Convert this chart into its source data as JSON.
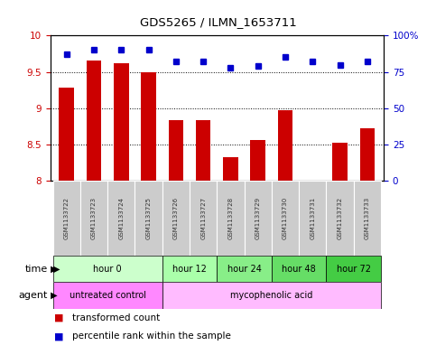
{
  "title": "GDS5265 / ILMN_1653711",
  "samples": [
    "GSM1133722",
    "GSM1133723",
    "GSM1133724",
    "GSM1133725",
    "GSM1133726",
    "GSM1133727",
    "GSM1133728",
    "GSM1133729",
    "GSM1133730",
    "GSM1133731",
    "GSM1133732",
    "GSM1133733"
  ],
  "bar_values": [
    9.28,
    9.65,
    9.62,
    9.5,
    8.84,
    8.84,
    8.33,
    8.57,
    8.97,
    8.01,
    8.53,
    8.72
  ],
  "dot_values": [
    87,
    90,
    90,
    90,
    82,
    82,
    78,
    79,
    85,
    82,
    80,
    82
  ],
  "bar_color": "#cc0000",
  "dot_color": "#0000cc",
  "ylim_left": [
    8,
    10
  ],
  "ylim_right": [
    0,
    100
  ],
  "yticks_left": [
    8,
    8.5,
    9,
    9.5,
    10
  ],
  "yticks_right": [
    0,
    25,
    50,
    75,
    100
  ],
  "ytick_labels_left": [
    "8",
    "8.5",
    "9",
    "9.5",
    "10"
  ],
  "ytick_labels_right": [
    "0",
    "25",
    "50",
    "75",
    "100%"
  ],
  "time_groups": [
    {
      "label": "hour 0",
      "start": 0,
      "end": 4,
      "color": "#ccffcc"
    },
    {
      "label": "hour 12",
      "start": 4,
      "end": 6,
      "color": "#aaffaa"
    },
    {
      "label": "hour 24",
      "start": 6,
      "end": 8,
      "color": "#88ee88"
    },
    {
      "label": "hour 48",
      "start": 8,
      "end": 10,
      "color": "#66dd66"
    },
    {
      "label": "hour 72",
      "start": 10,
      "end": 12,
      "color": "#44cc44"
    }
  ],
  "agent_groups": [
    {
      "label": "untreated control",
      "start": 0,
      "end": 4,
      "color": "#ff88ff"
    },
    {
      "label": "mycophenolic acid",
      "start": 4,
      "end": 12,
      "color": "#ffbbff"
    }
  ],
  "legend_items": [
    {
      "label": "transformed count",
      "color": "#cc0000"
    },
    {
      "label": "percentile rank within the sample",
      "color": "#0000cc"
    }
  ],
  "time_label": "time",
  "agent_label": "agent",
  "left_tick_color": "#cc0000",
  "right_tick_color": "#0000cc",
  "sample_bg_color": "#cccccc",
  "sample_text_color": "#333333"
}
